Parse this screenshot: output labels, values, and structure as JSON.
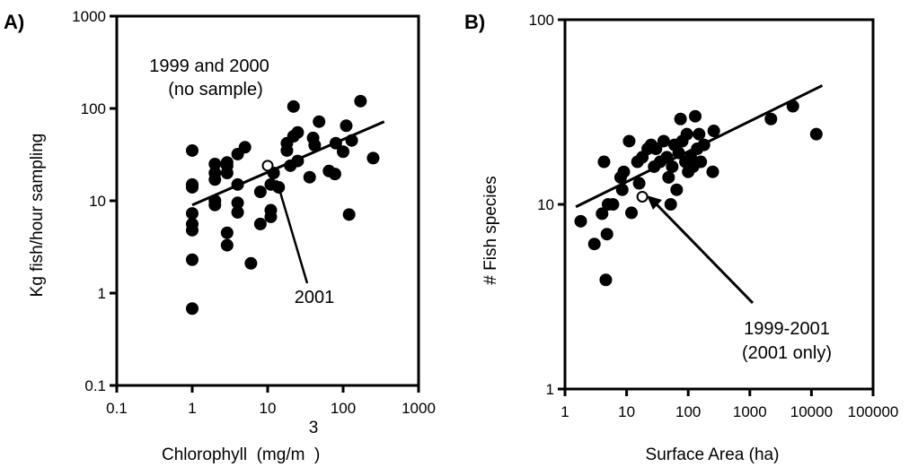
{
  "chart_data": [
    {
      "type": "scatter",
      "panel_label": "A)",
      "ylabel": "Kg fish/hour sampling",
      "xlabel": "Chlorophyll  (mg/m  )",
      "xlabel_superscript": "3",
      "xscale": "log",
      "yscale": "log",
      "xlim": [
        0.1,
        1000
      ],
      "ylim": [
        0.1,
        1000
      ],
      "xticks": [
        "0.1",
        "1",
        "10",
        "100",
        "1000"
      ],
      "yticks": [
        "0.1",
        "1",
        "10",
        "100",
        "1000"
      ],
      "annotations": [
        {
          "text": "1999 and 2000",
          "role": "note"
        },
        {
          "text": "(no sample)",
          "role": "note"
        },
        {
          "text": "2001",
          "role": "callout"
        }
      ],
      "trendline": {
        "x": [
          1,
          350
        ],
        "y": [
          9,
          72
        ]
      },
      "open_point": {
        "x": 10,
        "y": 24
      },
      "points": [
        {
          "x": 1,
          "y": 0.68
        },
        {
          "x": 1,
          "y": 2.3
        },
        {
          "x": 1,
          "y": 4.8
        },
        {
          "x": 1,
          "y": 5.6
        },
        {
          "x": 1,
          "y": 7.3
        },
        {
          "x": 1,
          "y": 14
        },
        {
          "x": 1,
          "y": 15
        },
        {
          "x": 1,
          "y": 35
        },
        {
          "x": 2,
          "y": 9
        },
        {
          "x": 2,
          "y": 10
        },
        {
          "x": 2,
          "y": 17
        },
        {
          "x": 2,
          "y": 20
        },
        {
          "x": 2,
          "y": 25
        },
        {
          "x": 2.9,
          "y": 3.3
        },
        {
          "x": 2.9,
          "y": 4.5
        },
        {
          "x": 2.9,
          "y": 20
        },
        {
          "x": 2.9,
          "y": 24
        },
        {
          "x": 2.9,
          "y": 26
        },
        {
          "x": 4,
          "y": 7.5
        },
        {
          "x": 4,
          "y": 9.5
        },
        {
          "x": 4,
          "y": 15
        },
        {
          "x": 4,
          "y": 32
        },
        {
          "x": 5,
          "y": 38
        },
        {
          "x": 6,
          "y": 2.1
        },
        {
          "x": 8,
          "y": 5.6
        },
        {
          "x": 8,
          "y": 12.5
        },
        {
          "x": 11,
          "y": 6.7
        },
        {
          "x": 11,
          "y": 7.9
        },
        {
          "x": 11,
          "y": 15
        },
        {
          "x": 12,
          "y": 20
        },
        {
          "x": 14,
          "y": 14
        },
        {
          "x": 18,
          "y": 35
        },
        {
          "x": 18,
          "y": 42
        },
        {
          "x": 20,
          "y": 24
        },
        {
          "x": 22,
          "y": 105
        },
        {
          "x": 22,
          "y": 50
        },
        {
          "x": 25,
          "y": 55
        },
        {
          "x": 25,
          "y": 27
        },
        {
          "x": 36,
          "y": 18
        },
        {
          "x": 40,
          "y": 48
        },
        {
          "x": 42,
          "y": 40
        },
        {
          "x": 48,
          "y": 72
        },
        {
          "x": 65,
          "y": 21
        },
        {
          "x": 78,
          "y": 19.5
        },
        {
          "x": 80,
          "y": 42
        },
        {
          "x": 100,
          "y": 34
        },
        {
          "x": 110,
          "y": 65
        },
        {
          "x": 120,
          "y": 7.1
        },
        {
          "x": 130,
          "y": 45
        },
        {
          "x": 170,
          "y": 120
        },
        {
          "x": 250,
          "y": 29
        }
      ]
    },
    {
      "type": "scatter",
      "panel_label": "B)",
      "ylabel": "# Fish species",
      "xlabel": "Surface Area (ha)",
      "xscale": "log",
      "yscale": "log",
      "xlim": [
        1,
        100000
      ],
      "ylim": [
        1,
        100
      ],
      "xticks": [
        "1",
        "10",
        "100",
        "1000",
        "10000",
        "100000"
      ],
      "yticks": [
        "1",
        "10",
        "100"
      ],
      "annotations": [
        {
          "text": "1999-2001",
          "role": "callout"
        },
        {
          "text": "(2001 only)",
          "role": "callout"
        }
      ],
      "trendline": {
        "x": [
          1.5,
          15000
        ],
        "y": [
          9.7,
          44
        ]
      },
      "open_point": {
        "x": 18,
        "y": 11
      },
      "points": [
        {
          "x": 1.8,
          "y": 8.1
        },
        {
          "x": 3,
          "y": 6.1
        },
        {
          "x": 4,
          "y": 8.9
        },
        {
          "x": 4.3,
          "y": 17
        },
        {
          "x": 4.6,
          "y": 3.9
        },
        {
          "x": 4.8,
          "y": 6.9
        },
        {
          "x": 5,
          "y": 10
        },
        {
          "x": 6,
          "y": 10
        },
        {
          "x": 8,
          "y": 14
        },
        {
          "x": 8.5,
          "y": 12
        },
        {
          "x": 9,
          "y": 15
        },
        {
          "x": 11,
          "y": 22
        },
        {
          "x": 12,
          "y": 9
        },
        {
          "x": 15,
          "y": 17
        },
        {
          "x": 16,
          "y": 13
        },
        {
          "x": 18,
          "y": 18
        },
        {
          "x": 22,
          "y": 20
        },
        {
          "x": 25,
          "y": 21
        },
        {
          "x": 28,
          "y": 16
        },
        {
          "x": 30,
          "y": 20
        },
        {
          "x": 35,
          "y": 17
        },
        {
          "x": 40,
          "y": 22
        },
        {
          "x": 45,
          "y": 18
        },
        {
          "x": 48,
          "y": 14
        },
        {
          "x": 52,
          "y": 10
        },
        {
          "x": 55,
          "y": 16
        },
        {
          "x": 60,
          "y": 21
        },
        {
          "x": 65,
          "y": 12
        },
        {
          "x": 70,
          "y": 19
        },
        {
          "x": 75,
          "y": 29
        },
        {
          "x": 80,
          "y": 22
        },
        {
          "x": 90,
          "y": 17
        },
        {
          "x": 95,
          "y": 24
        },
        {
          "x": 100,
          "y": 15
        },
        {
          "x": 110,
          "y": 18
        },
        {
          "x": 120,
          "y": 16
        },
        {
          "x": 130,
          "y": 30
        },
        {
          "x": 140,
          "y": 20
        },
        {
          "x": 150,
          "y": 24
        },
        {
          "x": 160,
          "y": 17
        },
        {
          "x": 180,
          "y": 21
        },
        {
          "x": 250,
          "y": 15
        },
        {
          "x": 260,
          "y": 25
        },
        {
          "x": 2200,
          "y": 29
        },
        {
          "x": 5000,
          "y": 34
        },
        {
          "x": 12000,
          "y": 24
        }
      ]
    }
  ]
}
